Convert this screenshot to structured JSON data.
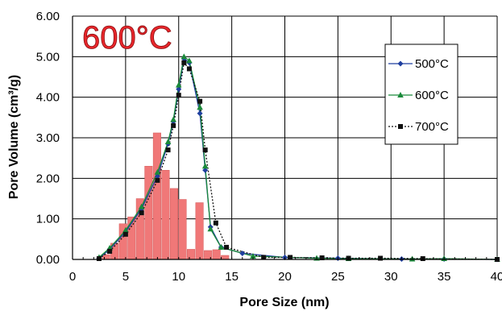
{
  "chart_data": {
    "type": "line",
    "annotation": "600°C",
    "xlabel": "Pore Size (nm)",
    "ylabel": "Pore Volume (cm³/g)",
    "xlim": [
      0,
      40
    ],
    "ylim": [
      0,
      6
    ],
    "x_ticks": [
      "0",
      "5",
      "10",
      "15",
      "20",
      "25",
      "30",
      "35",
      "40"
    ],
    "y_ticks": [
      "0.00",
      "1.00",
      "2.00",
      "3.00",
      "4.00",
      "5.00",
      "6.00"
    ],
    "grid": true,
    "legend_position": "right",
    "series": [
      {
        "name": "500°C",
        "color": "#1f3f9f",
        "marker": "diamond",
        "line": "solid",
        "points": [
          [
            2.5,
            0.03
          ],
          [
            3.5,
            0.25
          ],
          [
            5.0,
            0.68
          ],
          [
            6.5,
            1.25
          ],
          [
            8.0,
            2.05
          ],
          [
            9.0,
            2.85
          ],
          [
            9.5,
            3.4
          ],
          [
            10.0,
            4.2
          ],
          [
            10.5,
            4.95
          ],
          [
            11.0,
            4.85
          ],
          [
            12.0,
            3.6
          ],
          [
            12.5,
            2.2
          ],
          [
            13.0,
            0.8
          ],
          [
            14.0,
            0.3
          ],
          [
            16.0,
            0.15
          ],
          [
            20.0,
            0.05
          ],
          [
            25.0,
            0.03
          ],
          [
            31.0,
            0.01
          ],
          [
            35.0,
            0.01
          ],
          [
            40.0,
            0.0
          ]
        ]
      },
      {
        "name": "600°C",
        "color": "#1a8a3a",
        "marker": "triangle",
        "line": "solid",
        "points": [
          [
            2.5,
            0.05
          ],
          [
            3.5,
            0.28
          ],
          [
            5.0,
            0.72
          ],
          [
            6.5,
            1.3
          ],
          [
            8.0,
            2.15
          ],
          [
            9.0,
            2.9
          ],
          [
            9.5,
            3.45
          ],
          [
            10.0,
            4.3
          ],
          [
            10.5,
            5.0
          ],
          [
            11.0,
            4.9
          ],
          [
            12.0,
            3.75
          ],
          [
            12.5,
            2.3
          ],
          [
            13.0,
            0.75
          ],
          [
            14.0,
            0.3
          ],
          [
            17.0,
            0.08
          ],
          [
            23.0,
            0.03
          ],
          [
            26.0,
            0.02
          ],
          [
            32.0,
            0.01
          ],
          [
            35.0,
            0.02
          ],
          [
            40.0,
            0.0
          ]
        ]
      },
      {
        "name": "700°C",
        "color": "#111111",
        "marker": "square",
        "line": "dotted",
        "points": [
          [
            2.5,
            0.02
          ],
          [
            3.5,
            0.2
          ],
          [
            5.0,
            0.62
          ],
          [
            6.5,
            1.15
          ],
          [
            8.0,
            1.95
          ],
          [
            9.0,
            2.7
          ],
          [
            9.5,
            3.3
          ],
          [
            10.0,
            4.05
          ],
          [
            10.5,
            4.85
          ],
          [
            11.0,
            4.7
          ],
          [
            12.0,
            3.9
          ],
          [
            12.5,
            2.7
          ],
          [
            13.5,
            0.9
          ],
          [
            14.5,
            0.3
          ],
          [
            18.0,
            0.05
          ],
          [
            20.5,
            0.05
          ],
          [
            23.5,
            0.04
          ],
          [
            26.0,
            0.03
          ],
          [
            29.0,
            0.03
          ],
          [
            33.0,
            0.02
          ],
          [
            40.0,
            0.0
          ]
        ]
      }
    ],
    "histogram": {
      "color": "#f07878",
      "bin_width": 0.8,
      "centers": [
        3.2,
        4.0,
        4.8,
        5.6,
        6.4,
        7.2,
        8.0,
        8.8,
        9.6,
        10.4,
        11.2,
        12.0,
        12.8,
        13.6,
        14.4
      ],
      "values": [
        0.12,
        0.4,
        0.88,
        1.05,
        1.5,
        2.3,
        3.12,
        2.2,
        1.75,
        1.48,
        0.25,
        1.4,
        0.22,
        0.24,
        0.1
      ]
    }
  }
}
